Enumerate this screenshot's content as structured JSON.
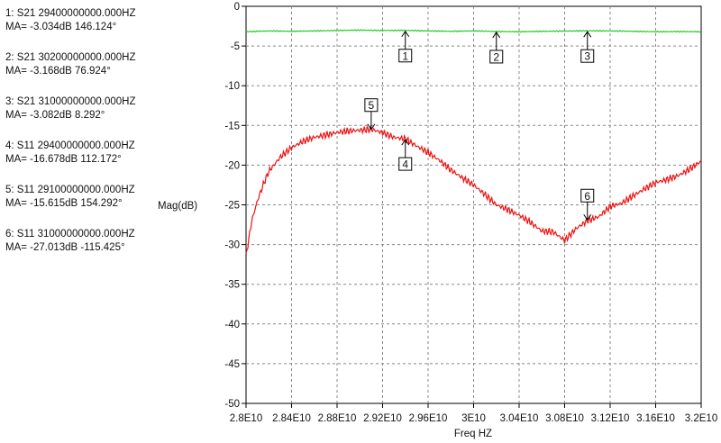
{
  "markers_panel": [
    {
      "line1": "1: S21  29400000000.000HZ",
      "line2": "MA= -3.034dB 146.124°"
    },
    {
      "line1": "2: S21  30200000000.000HZ",
      "line2": "MA= -3.168dB 76.924°"
    },
    {
      "line1": "3: S21  31000000000.000HZ",
      "line2": "MA= -3.082dB 8.292°"
    },
    {
      "line1": "4: S11  29400000000.000HZ",
      "line2": "MA= -16.678dB 112.172°"
    },
    {
      "line1": "5: S11  29100000000.000HZ",
      "line2": "MA= -15.615dB 154.292°"
    },
    {
      "line1": "6: S11  31000000000.000HZ",
      "line2": "MA= -27.013dB -115.425°"
    }
  ],
  "chart_data": {
    "type": "line",
    "xlabel": "Freq HZ",
    "ylabel": "Mag(dB)",
    "xlim": [
      28000000000.0,
      32000000000.0
    ],
    "ylim": [
      -50,
      0
    ],
    "grid": true,
    "x_ticks": [
      {
        "value": 28000000000.0,
        "label": "2.8E10"
      },
      {
        "value": 28400000000.0,
        "label": "2.84E10"
      },
      {
        "value": 28800000000.0,
        "label": "2.88E10"
      },
      {
        "value": 29200000000.0,
        "label": "2.92E10"
      },
      {
        "value": 29600000000.0,
        "label": "2.96E10"
      },
      {
        "value": 30000000000.0,
        "label": "3E10"
      },
      {
        "value": 30400000000.0,
        "label": "3.04E10"
      },
      {
        "value": 30800000000.0,
        "label": "3.08E10"
      },
      {
        "value": 31200000000.0,
        "label": "3.12E10"
      },
      {
        "value": 31600000000.0,
        "label": "3.16E10"
      },
      {
        "value": 32000000000.0,
        "label": "3.2E10"
      }
    ],
    "y_ticks": [
      0,
      -5,
      -10,
      -15,
      -20,
      -25,
      -30,
      -35,
      -40,
      -45,
      -50
    ],
    "series": [
      {
        "color": "#22cc22",
        "x": [
          28000000000.0,
          28200000000.0,
          28400000000.0,
          28600000000.0,
          28800000000.0,
          29000000000.0,
          29200000000.0,
          29400000000.0,
          29600000000.0,
          29800000000.0,
          30000000000.0,
          30200000000.0,
          30400000000.0,
          30600000000.0,
          30800000000.0,
          31000000000.0,
          31200000000.0,
          31400000000.0,
          31600000000.0,
          31800000000.0,
          32000000000.0
        ],
        "y": [
          -3.2,
          -3.1,
          -3.15,
          -3.1,
          -3.05,
          -3.0,
          -3.05,
          -3.03,
          -3.1,
          -3.15,
          -3.1,
          -3.17,
          -3.2,
          -3.15,
          -3.12,
          -3.08,
          -3.1,
          -3.15,
          -3.2,
          -3.18,
          -3.2
        ]
      },
      {
        "color": "#ee1111",
        "x": [
          28000000000.0,
          28050000000.0,
          28100000000.0,
          28150000000.0,
          28200000000.0,
          28300000000.0,
          28400000000.0,
          28500000000.0,
          28600000000.0,
          28700000000.0,
          28800000000.0,
          28900000000.0,
          29000000000.0,
          29100000000.0,
          29200000000.0,
          29300000000.0,
          29400000000.0,
          29500000000.0,
          29600000000.0,
          29700000000.0,
          29800000000.0,
          29900000000.0,
          30000000000.0,
          30100000000.0,
          30200000000.0,
          30300000000.0,
          30400000000.0,
          30500000000.0,
          30600000000.0,
          30700000000.0,
          30800000000.0,
          30900000000.0,
          31000000000.0,
          31100000000.0,
          31200000000.0,
          31300000000.0,
          31400000000.0,
          31500000000.0,
          31600000000.0,
          31700000000.0,
          31800000000.0,
          31900000000.0,
          32000000000.0
        ],
        "y": [
          -31.5,
          -27.0,
          -24.5,
          -22.5,
          -20.8,
          -19.0,
          -17.8,
          -17.0,
          -16.5,
          -16.2,
          -15.9,
          -15.7,
          -15.6,
          -15.5,
          -15.9,
          -16.5,
          -16.7,
          -17.6,
          -18.4,
          -19.4,
          -20.6,
          -21.6,
          -22.5,
          -23.7,
          -25.0,
          -25.6,
          -26.3,
          -27.2,
          -28.3,
          -28.4,
          -29.5,
          -28.0,
          -27.0,
          -26.5,
          -25.2,
          -24.8,
          -23.9,
          -23.0,
          -22.2,
          -21.8,
          -21.3,
          -20.5,
          -19.5
        ]
      }
    ],
    "markers": [
      {
        "label": "1",
        "x": 29400000000.0,
        "y": -3.034,
        "dir": "up"
      },
      {
        "label": "2",
        "x": 30200000000.0,
        "y": -3.168,
        "dir": "up"
      },
      {
        "label": "3",
        "x": 31000000000.0,
        "y": -3.082,
        "dir": "up"
      },
      {
        "label": "4",
        "x": 29400000000.0,
        "y": -16.678,
        "dir": "up"
      },
      {
        "label": "5",
        "x": 29100000000.0,
        "y": -15.615,
        "dir": "down"
      },
      {
        "label": "6",
        "x": 31000000000.0,
        "y": -27.013,
        "dir": "down"
      }
    ]
  }
}
